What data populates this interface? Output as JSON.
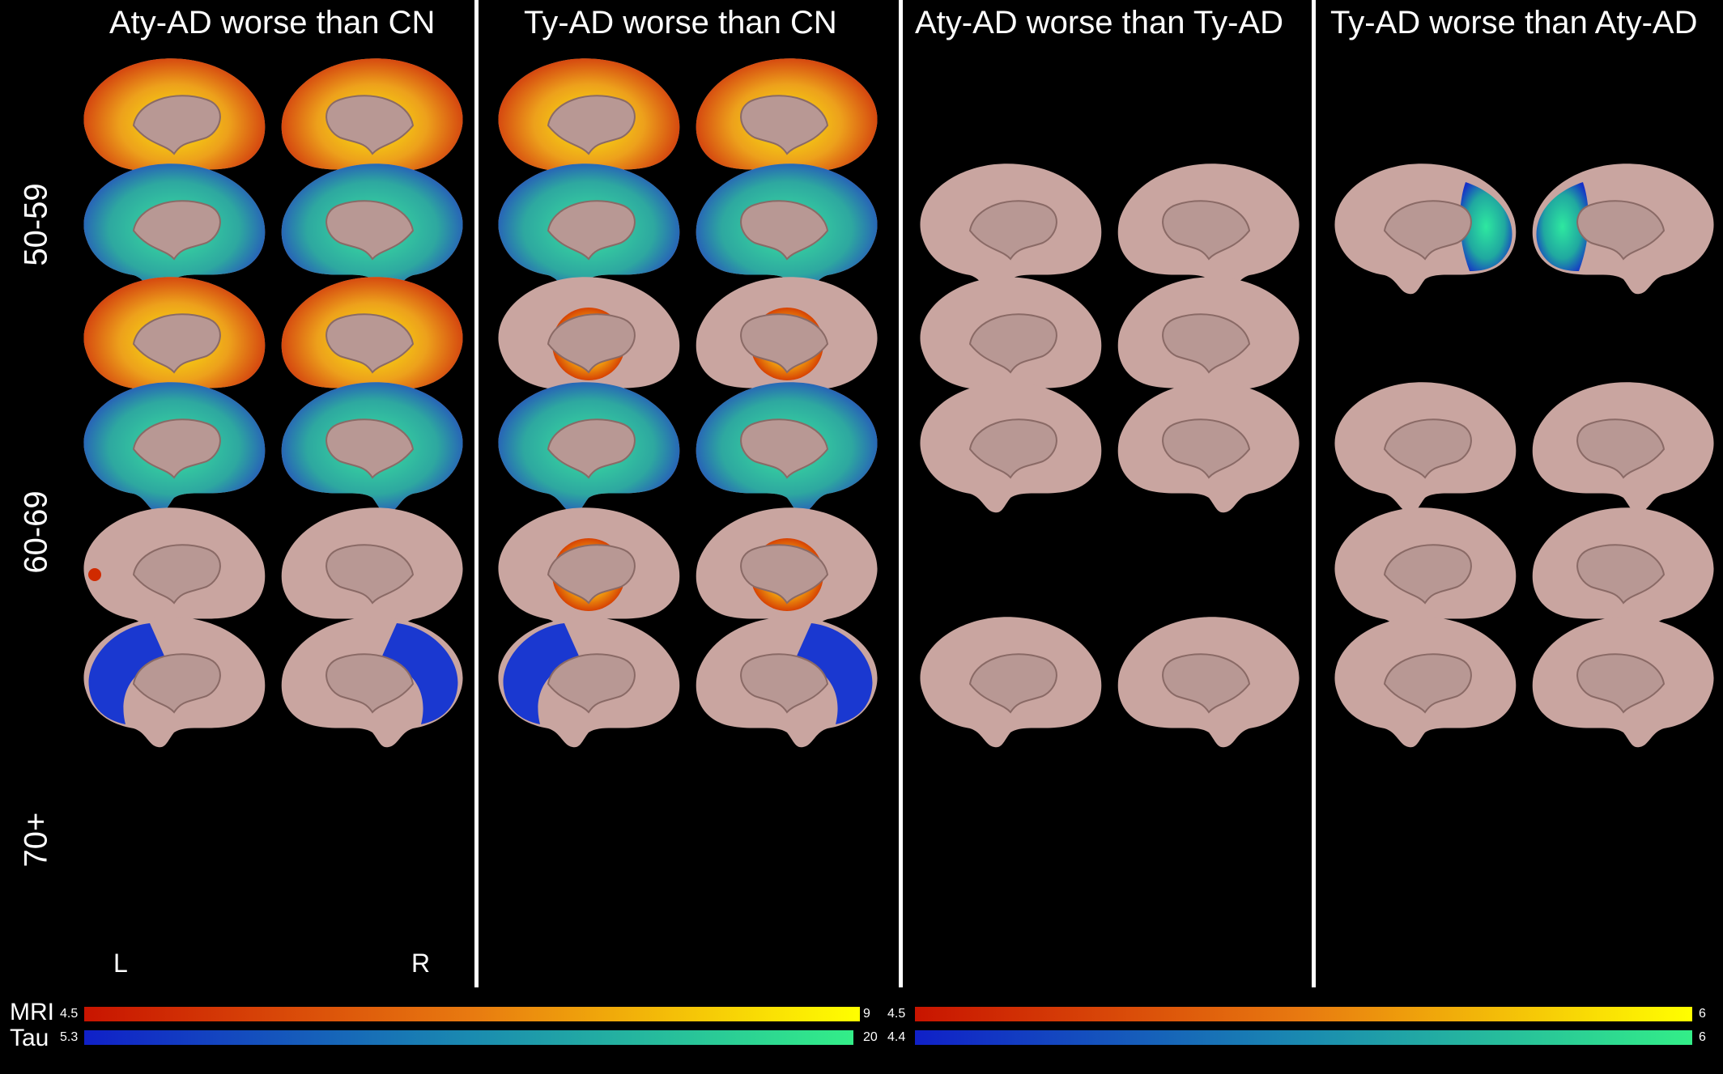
{
  "columns": [
    {
      "title": "Aty-AD worse than CN"
    },
    {
      "title": "Ty-AD worse than CN"
    },
    {
      "title": "Aty-AD worse than Ty-AD"
    },
    {
      "title": "Ty-AD worse than Aty-AD"
    }
  ],
  "age_groups": [
    {
      "label": "50-59"
    },
    {
      "label": "60-69"
    },
    {
      "label": "70+"
    }
  ],
  "hemisphere_labels": {
    "left": "L",
    "right": "R"
  },
  "colorbars": {
    "mri_label": "MRI",
    "tau_label": "Tau",
    "left": {
      "mri_min": "4.5",
      "mri_max": "9",
      "tau_min": "5.3",
      "tau_max": "20"
    },
    "right": {
      "mri_min": "4.5",
      "mri_max": "6",
      "tau_min": "4.4",
      "tau_max": "6"
    }
  },
  "colors": {
    "mri_low": "#cc1a00",
    "mri_high": "#ffff00",
    "tau_low": "#1a2ecc",
    "tau_high": "#33ee88",
    "cortex": "#c9a5a0"
  }
}
